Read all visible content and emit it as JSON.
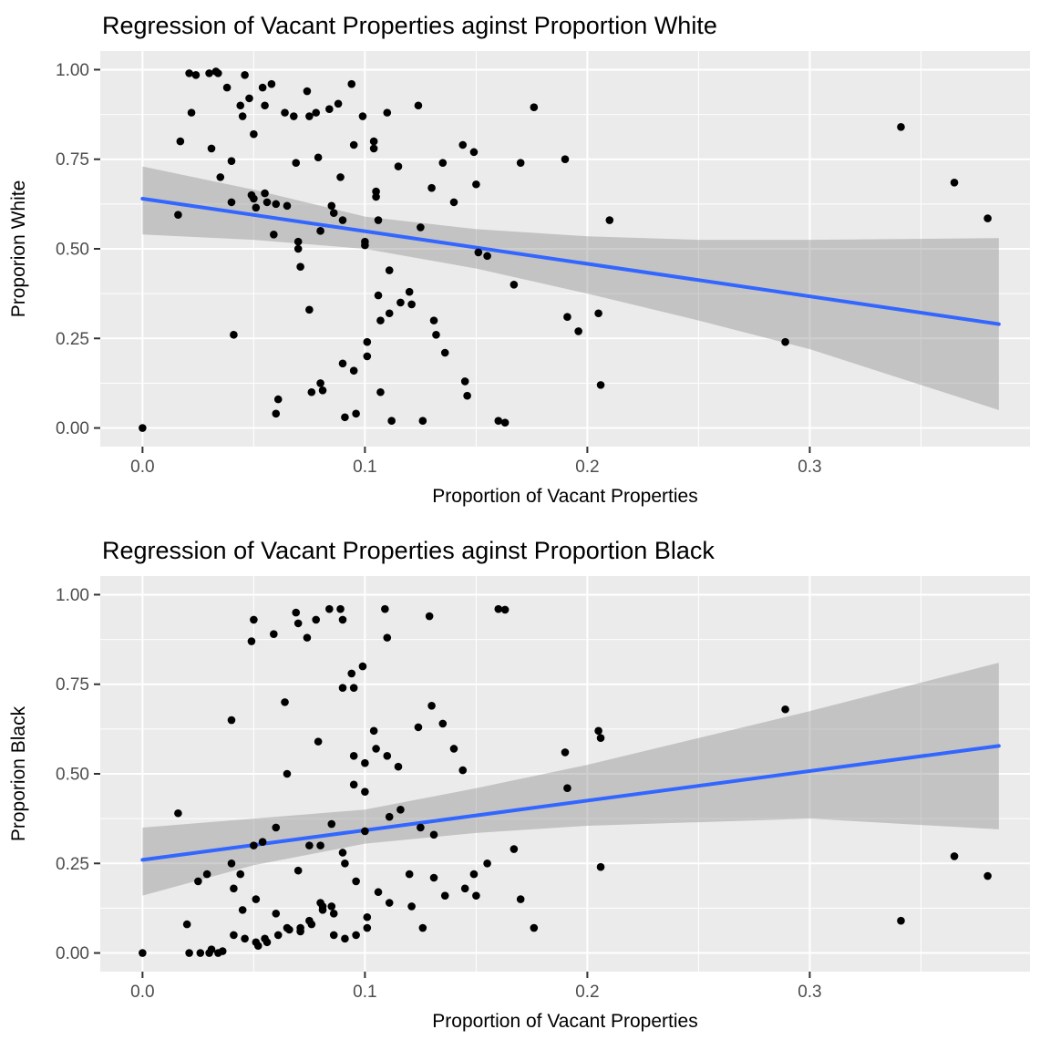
{
  "style": {
    "background": "#FFFFFF",
    "panel": "#EBEBEB",
    "grid": "#FFFFFF",
    "point": "#000000",
    "line": "#3366FF",
    "band": "#8C8C8C",
    "band_opacity": 0.42,
    "tick": "#333333",
    "tick_text": "#4D4D4D",
    "title_text": "#000000"
  },
  "chart_data": [
    {
      "type": "scatter",
      "title": "Regression of Vacant Properties aginst Proportion White",
      "xlabel": "Proportion of Vacant Properties",
      "ylabel": "Proporion White",
      "xlim": [
        -0.019,
        0.399
      ],
      "ylim": [
        -0.052,
        1.052
      ],
      "xticks": [
        0,
        0.1,
        0.2,
        0.3
      ],
      "xtick_labels": [
        "0.0",
        "0.1",
        "0.2",
        "0.3"
      ],
      "yticks": [
        0,
        0.25,
        0.5,
        0.75,
        1
      ],
      "ytick_labels": [
        "0.00",
        "0.25",
        "0.50",
        "0.75",
        "1.00"
      ],
      "grid": true,
      "legend": "none",
      "regression_line": [
        [
          0,
          0.64
        ],
        [
          0.385,
          0.29
        ]
      ],
      "confidence_band": [
        [
          0,
          0.54,
          0.73
        ],
        [
          0.05,
          0.525,
          0.665
        ],
        [
          0.1,
          0.5,
          0.59
        ],
        [
          0.15,
          0.445,
          0.555
        ],
        [
          0.2,
          0.375,
          0.535
        ],
        [
          0.25,
          0.3,
          0.525
        ],
        [
          0.3,
          0.22,
          0.525
        ],
        [
          0.385,
          0.05,
          0.53
        ]
      ],
      "points": [
        [
          0.0,
          0.0
        ],
        [
          0.016,
          0.595
        ],
        [
          0.017,
          0.8
        ],
        [
          0.021,
          0.99
        ],
        [
          0.022,
          0.88
        ],
        [
          0.024,
          0.985
        ],
        [
          0.03,
          0.99
        ],
        [
          0.031,
          0.78
        ],
        [
          0.033,
          0.995
        ],
        [
          0.034,
          0.99
        ],
        [
          0.035,
          0.7
        ],
        [
          0.038,
          0.95
        ],
        [
          0.04,
          0.745
        ],
        [
          0.04,
          0.63
        ],
        [
          0.041,
          0.26
        ],
        [
          0.044,
          0.9
        ],
        [
          0.045,
          0.87
        ],
        [
          0.046,
          0.985
        ],
        [
          0.048,
          0.92
        ],
        [
          0.049,
          0.65
        ],
        [
          0.05,
          0.82
        ],
        [
          0.05,
          0.64
        ],
        [
          0.051,
          0.615
        ],
        [
          0.054,
          0.95
        ],
        [
          0.055,
          0.9
        ],
        [
          0.055,
          0.655
        ],
        [
          0.056,
          0.63
        ],
        [
          0.058,
          0.96
        ],
        [
          0.059,
          0.54
        ],
        [
          0.06,
          0.625
        ],
        [
          0.06,
          0.04
        ],
        [
          0.061,
          0.08
        ],
        [
          0.064,
          0.88
        ],
        [
          0.065,
          0.62
        ],
        [
          0.068,
          0.87
        ],
        [
          0.069,
          0.74
        ],
        [
          0.07,
          0.52
        ],
        [
          0.07,
          0.5
        ],
        [
          0.071,
          0.45
        ],
        [
          0.074,
          0.94
        ],
        [
          0.075,
          0.87
        ],
        [
          0.075,
          0.33
        ],
        [
          0.076,
          0.1
        ],
        [
          0.078,
          0.88
        ],
        [
          0.079,
          0.755
        ],
        [
          0.08,
          0.55
        ],
        [
          0.08,
          0.125
        ],
        [
          0.081,
          0.105
        ],
        [
          0.084,
          0.89
        ],
        [
          0.085,
          0.62
        ],
        [
          0.086,
          0.6
        ],
        [
          0.088,
          0.905
        ],
        [
          0.089,
          0.7
        ],
        [
          0.09,
          0.58
        ],
        [
          0.09,
          0.18
        ],
        [
          0.091,
          0.03
        ],
        [
          0.094,
          0.96
        ],
        [
          0.095,
          0.79
        ],
        [
          0.095,
          0.16
        ],
        [
          0.096,
          0.04
        ],
        [
          0.099,
          0.87
        ],
        [
          0.1,
          0.52
        ],
        [
          0.1,
          0.51
        ],
        [
          0.101,
          0.24
        ],
        [
          0.101,
          0.2
        ],
        [
          0.104,
          0.8
        ],
        [
          0.104,
          0.78
        ],
        [
          0.105,
          0.66
        ],
        [
          0.105,
          0.645
        ],
        [
          0.106,
          0.58
        ],
        [
          0.106,
          0.37
        ],
        [
          0.107,
          0.3
        ],
        [
          0.107,
          0.1
        ],
        [
          0.11,
          0.88
        ],
        [
          0.111,
          0.44
        ],
        [
          0.111,
          0.32
        ],
        [
          0.112,
          0.02
        ],
        [
          0.115,
          0.73
        ],
        [
          0.116,
          0.35
        ],
        [
          0.12,
          0.38
        ],
        [
          0.121,
          0.345
        ],
        [
          0.124,
          0.9
        ],
        [
          0.125,
          0.56
        ],
        [
          0.126,
          0.02
        ],
        [
          0.13,
          0.67
        ],
        [
          0.131,
          0.3
        ],
        [
          0.132,
          0.26
        ],
        [
          0.135,
          0.74
        ],
        [
          0.136,
          0.21
        ],
        [
          0.14,
          0.63
        ],
        [
          0.144,
          0.79
        ],
        [
          0.145,
          0.13
        ],
        [
          0.146,
          0.09
        ],
        [
          0.149,
          0.77
        ],
        [
          0.15,
          0.68
        ],
        [
          0.151,
          0.49
        ],
        [
          0.155,
          0.48
        ],
        [
          0.16,
          0.02
        ],
        [
          0.163,
          0.015
        ],
        [
          0.167,
          0.4
        ],
        [
          0.17,
          0.74
        ],
        [
          0.176,
          0.895
        ],
        [
          0.19,
          0.75
        ],
        [
          0.191,
          0.31
        ],
        [
          0.196,
          0.27
        ],
        [
          0.205,
          0.32
        ],
        [
          0.206,
          0.12
        ],
        [
          0.21,
          0.58
        ],
        [
          0.289,
          0.24
        ],
        [
          0.341,
          0.84
        ],
        [
          0.365,
          0.685
        ],
        [
          0.38,
          0.585
        ]
      ]
    },
    {
      "type": "scatter",
      "title": "Regression of Vacant Properties aginst Proportion Black",
      "xlabel": "Proportion of Vacant Properties",
      "ylabel": "Proporion Black",
      "xlim": [
        -0.019,
        0.399
      ],
      "ylim": [
        -0.052,
        1.052
      ],
      "xticks": [
        0,
        0.1,
        0.2,
        0.3
      ],
      "xtick_labels": [
        "0.0",
        "0.1",
        "0.2",
        "0.3"
      ],
      "yticks": [
        0,
        0.25,
        0.5,
        0.75,
        1
      ],
      "ytick_labels": [
        "0.00",
        "0.25",
        "0.50",
        "0.75",
        "1.00"
      ],
      "grid": true,
      "legend": "none",
      "regression_line": [
        [
          0,
          0.26
        ],
        [
          0.385,
          0.578
        ]
      ],
      "confidence_band": [
        [
          0,
          0.16,
          0.35
        ],
        [
          0.05,
          0.245,
          0.375
        ],
        [
          0.1,
          0.305,
          0.4
        ],
        [
          0.15,
          0.335,
          0.46
        ],
        [
          0.2,
          0.355,
          0.525
        ],
        [
          0.25,
          0.365,
          0.6
        ],
        [
          0.3,
          0.375,
          0.675
        ],
        [
          0.385,
          0.345,
          0.81
        ]
      ],
      "points": [
        [
          0.0,
          0.0
        ],
        [
          0.016,
          0.39
        ],
        [
          0.02,
          0.08
        ],
        [
          0.021,
          0.0
        ],
        [
          0.025,
          0.2
        ],
        [
          0.026,
          0.0
        ],
        [
          0.029,
          0.22
        ],
        [
          0.03,
          0.0
        ],
        [
          0.031,
          0.01
        ],
        [
          0.034,
          0.0
        ],
        [
          0.036,
          0.005
        ],
        [
          0.04,
          0.65
        ],
        [
          0.04,
          0.25
        ],
        [
          0.041,
          0.18
        ],
        [
          0.041,
          0.05
        ],
        [
          0.044,
          0.22
        ],
        [
          0.045,
          0.12
        ],
        [
          0.046,
          0.04
        ],
        [
          0.049,
          0.87
        ],
        [
          0.05,
          0.93
        ],
        [
          0.05,
          0.3
        ],
        [
          0.051,
          0.15
        ],
        [
          0.051,
          0.03
        ],
        [
          0.052,
          0.02
        ],
        [
          0.054,
          0.31
        ],
        [
          0.055,
          0.04
        ],
        [
          0.056,
          0.03
        ],
        [
          0.059,
          0.89
        ],
        [
          0.06,
          0.35
        ],
        [
          0.06,
          0.11
        ],
        [
          0.061,
          0.05
        ],
        [
          0.064,
          0.7
        ],
        [
          0.065,
          0.5
        ],
        [
          0.065,
          0.07
        ],
        [
          0.066,
          0.065
        ],
        [
          0.069,
          0.95
        ],
        [
          0.07,
          0.92
        ],
        [
          0.07,
          0.23
        ],
        [
          0.071,
          0.07
        ],
        [
          0.071,
          0.06
        ],
        [
          0.074,
          0.88
        ],
        [
          0.075,
          0.3
        ],
        [
          0.075,
          0.09
        ],
        [
          0.076,
          0.08
        ],
        [
          0.078,
          0.93
        ],
        [
          0.079,
          0.59
        ],
        [
          0.08,
          0.3
        ],
        [
          0.08,
          0.14
        ],
        [
          0.081,
          0.13
        ],
        [
          0.081,
          0.12
        ],
        [
          0.084,
          0.96
        ],
        [
          0.085,
          0.36
        ],
        [
          0.085,
          0.13
        ],
        [
          0.086,
          0.11
        ],
        [
          0.086,
          0.05
        ],
        [
          0.089,
          0.96
        ],
        [
          0.09,
          0.93
        ],
        [
          0.09,
          0.74
        ],
        [
          0.09,
          0.28
        ],
        [
          0.091,
          0.25
        ],
        [
          0.091,
          0.04
        ],
        [
          0.094,
          0.78
        ],
        [
          0.095,
          0.74
        ],
        [
          0.095,
          0.55
        ],
        [
          0.095,
          0.47
        ],
        [
          0.096,
          0.2
        ],
        [
          0.096,
          0.05
        ],
        [
          0.099,
          0.8
        ],
        [
          0.1,
          0.53
        ],
        [
          0.1,
          0.45
        ],
        [
          0.1,
          0.34
        ],
        [
          0.101,
          0.1
        ],
        [
          0.101,
          0.07
        ],
        [
          0.104,
          0.62
        ],
        [
          0.105,
          0.57
        ],
        [
          0.106,
          0.17
        ],
        [
          0.109,
          0.96
        ],
        [
          0.11,
          0.88
        ],
        [
          0.11,
          0.55
        ],
        [
          0.111,
          0.38
        ],
        [
          0.111,
          0.14
        ],
        [
          0.115,
          0.52
        ],
        [
          0.116,
          0.4
        ],
        [
          0.12,
          0.22
        ],
        [
          0.121,
          0.13
        ],
        [
          0.124,
          0.63
        ],
        [
          0.125,
          0.35
        ],
        [
          0.126,
          0.07
        ],
        [
          0.129,
          0.94
        ],
        [
          0.13,
          0.69
        ],
        [
          0.131,
          0.33
        ],
        [
          0.131,
          0.21
        ],
        [
          0.135,
          0.64
        ],
        [
          0.136,
          0.16
        ],
        [
          0.14,
          0.57
        ],
        [
          0.144,
          0.51
        ],
        [
          0.145,
          0.18
        ],
        [
          0.149,
          0.22
        ],
        [
          0.15,
          0.16
        ],
        [
          0.155,
          0.25
        ],
        [
          0.16,
          0.96
        ],
        [
          0.163,
          0.958
        ],
        [
          0.167,
          0.29
        ],
        [
          0.17,
          0.15
        ],
        [
          0.176,
          0.07
        ],
        [
          0.19,
          0.56
        ],
        [
          0.191,
          0.46
        ],
        [
          0.205,
          0.62
        ],
        [
          0.206,
          0.6
        ],
        [
          0.206,
          0.24
        ],
        [
          0.289,
          0.68
        ],
        [
          0.341,
          0.09
        ],
        [
          0.365,
          0.27
        ],
        [
          0.38,
          0.215
        ]
      ]
    }
  ]
}
